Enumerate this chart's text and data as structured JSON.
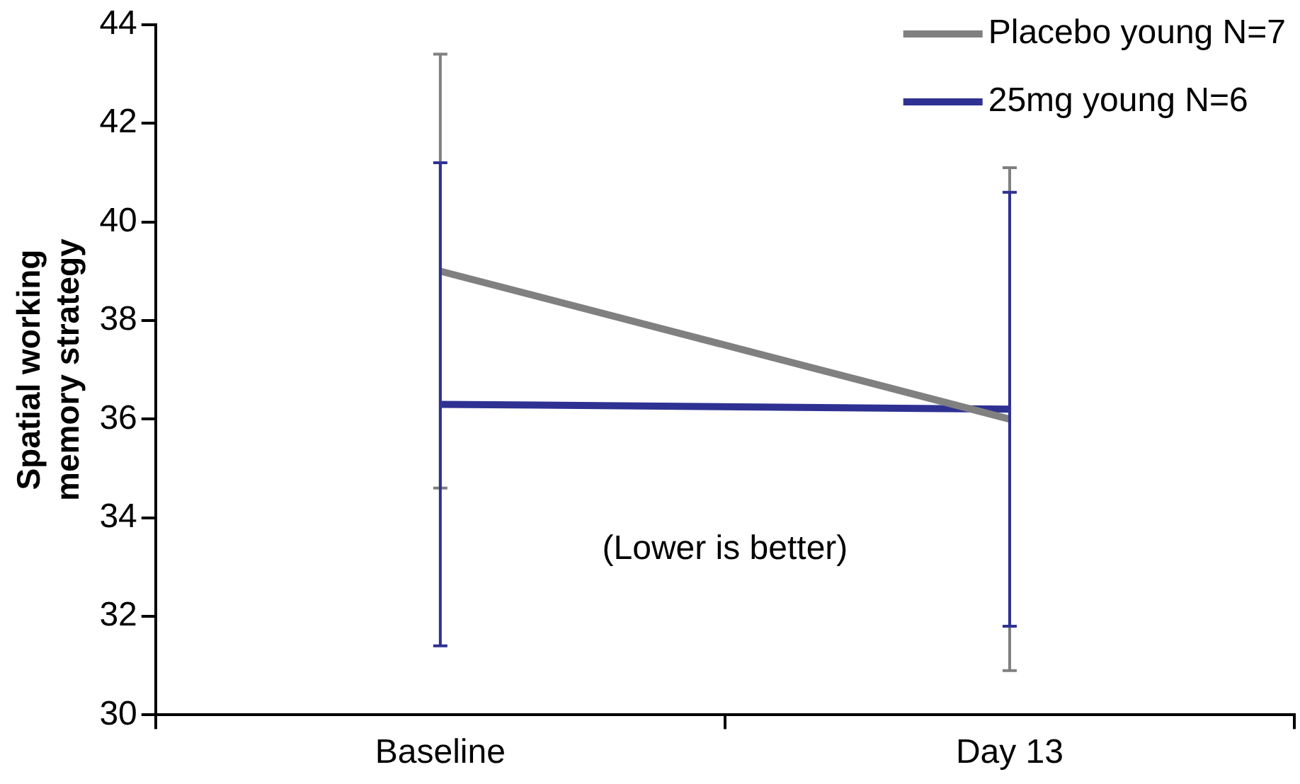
{
  "chart_data": {
    "type": "line",
    "ylabel": "Spatial working memory strategy",
    "categories": [
      "Baseline",
      "Day 13"
    ],
    "series": [
      {
        "name": "Placebo young N=7",
        "color": "#808080",
        "values": [
          39,
          36
        ],
        "errors": [
          4.4,
          5.1
        ]
      },
      {
        "name": "25mg young N=6",
        "color": "#2e3192",
        "values": [
          36.3,
          36.2
        ],
        "errors": [
          4.9,
          4.4
        ]
      }
    ],
    "ylim": [
      30,
      44
    ],
    "yticks": [
      30,
      32,
      34,
      36,
      38,
      40,
      42,
      44
    ],
    "grid": false,
    "legend": "top right",
    "marker": "none",
    "line_style": "solid",
    "annotations": [
      "(Lower is better)"
    ]
  }
}
